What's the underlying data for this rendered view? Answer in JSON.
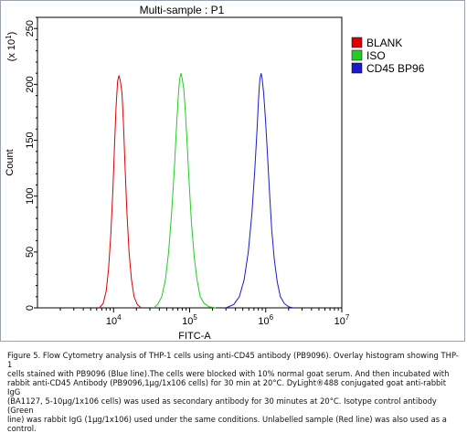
{
  "chart_data": {
    "type": "line",
    "title": "Multi-sample : P1",
    "xlabel": "FITC-A",
    "ylabel": "Count",
    "y_multiplier_label": "(x 10",
    "y_multiplier_exp": "1",
    "x_scale": "log",
    "xlim": [
      1000,
      10000000
    ],
    "ylim": [
      0,
      26
    ],
    "x_ticks": [
      {
        "value": 10000,
        "base": "10",
        "exp": "4"
      },
      {
        "value": 100000,
        "base": "10",
        "exp": "5"
      },
      {
        "value": 1000000,
        "base": "10",
        "exp": "6"
      },
      {
        "value": 10000000,
        "base": "10",
        "exp": "7"
      }
    ],
    "y_ticks": [
      {
        "value": 0,
        "label": "0"
      },
      {
        "value": 5,
        "label": "50"
      },
      {
        "value": 10,
        "label": "100"
      },
      {
        "value": 15,
        "label": "150"
      },
      {
        "value": 20,
        "label": "200"
      },
      {
        "value": 25,
        "label": "250"
      }
    ],
    "grid": false,
    "legend_position": "top-right",
    "series": [
      {
        "name": "BLANK",
        "color": "#dd0000",
        "points": [
          [
            6500,
            0
          ],
          [
            7300,
            0.4
          ],
          [
            8000,
            1.5
          ],
          [
            8600,
            3.5
          ],
          [
            9200,
            6.5
          ],
          [
            9800,
            10.5
          ],
          [
            10300,
            14.5
          ],
          [
            10800,
            18
          ],
          [
            11300,
            20.3
          ],
          [
            11800,
            20.8
          ],
          [
            12300,
            20.3
          ],
          [
            12900,
            19.2
          ],
          [
            13500,
            16.5
          ],
          [
            14200,
            12.5
          ],
          [
            15000,
            8.5
          ],
          [
            16000,
            5
          ],
          [
            17200,
            2.5
          ],
          [
            18600,
            1
          ],
          [
            20500,
            0.3
          ],
          [
            23000,
            0
          ]
        ]
      },
      {
        "name": "ISO",
        "color": "#22cc22",
        "points": [
          [
            34000,
            0
          ],
          [
            38000,
            0.3
          ],
          [
            43000,
            1
          ],
          [
            48000,
            2.5
          ],
          [
            53000,
            5
          ],
          [
            58000,
            8.5
          ],
          [
            63000,
            12.5
          ],
          [
            67000,
            16
          ],
          [
            71000,
            19
          ],
          [
            74000,
            20.5
          ],
          [
            77000,
            21
          ],
          [
            80000,
            20.5
          ],
          [
            84000,
            19.5
          ],
          [
            88000,
            17.5
          ],
          [
            93000,
            14.5
          ],
          [
            99000,
            11
          ],
          [
            106000,
            7.5
          ],
          [
            115000,
            4.5
          ],
          [
            125000,
            2.5
          ],
          [
            138000,
            1
          ],
          [
            155000,
            0.4
          ],
          [
            180000,
            0.1
          ],
          [
            220000,
            0
          ]
        ]
      },
      {
        "name": "CD45 BP96",
        "color": "#1a1acc",
        "points": [
          [
            300000,
            0
          ],
          [
            380000,
            0.3
          ],
          [
            450000,
            1
          ],
          [
            520000,
            2.5
          ],
          [
            590000,
            5
          ],
          [
            660000,
            8.5
          ],
          [
            720000,
            12.5
          ],
          [
            770000,
            16
          ],
          [
            810000,
            19
          ],
          [
            840000,
            20.5
          ],
          [
            870000,
            21
          ],
          [
            900000,
            20.5
          ],
          [
            940000,
            19.2
          ],
          [
            990000,
            17
          ],
          [
            1050000,
            14
          ],
          [
            1120000,
            10.5
          ],
          [
            1200000,
            7
          ],
          [
            1300000,
            4.3
          ],
          [
            1420000,
            2.3
          ],
          [
            1560000,
            1
          ],
          [
            1750000,
            0.4
          ],
          [
            2000000,
            0.1
          ],
          [
            2300000,
            0
          ]
        ]
      }
    ]
  },
  "caption_lines": [
    "Figure 5. Flow Cytometry analysis of THP-1 cells using anti-CD45 antibody (PB9096).  Overlay histogram showing THP-1",
    "cells stained with PB9096 (Blue line).The cells were blocked with 10% normal goat serum.  And then incubated with",
    "rabbit anti-CD45 Antibody (PB9096,1μg/1x106 cells) for 30 min at 20°C. DyLight®488 conjugated goat anti-rabbit IgG",
    "(BA1127, 5-10μg/1x106 cells) was used as secondary antibody for 30 minutes at 20°C. Isotype control antibody (Green",
    "line) was rabbit IgG (1μg/1x106) used under the same conditions. Unlabelled sample (Red line) was also used as a",
    "control."
  ]
}
